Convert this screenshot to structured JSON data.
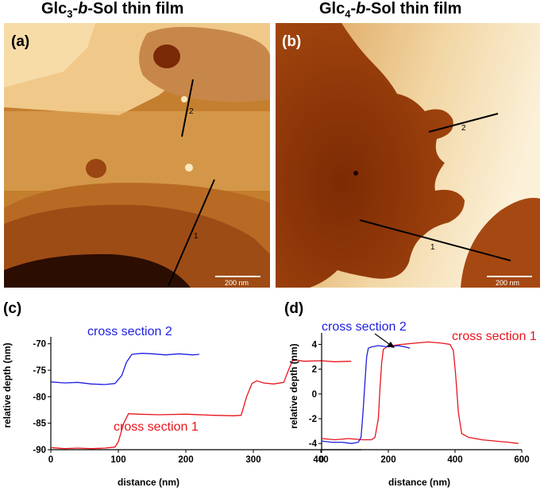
{
  "titles": {
    "a": {
      "pre": "Glc",
      "sub": "3",
      "post": "-",
      "italic": "b",
      "post2": "-Sol thin film"
    },
    "b": {
      "pre": "Glc",
      "sub": "4",
      "post": "-",
      "italic": "b",
      "post2": "-Sol thin film"
    }
  },
  "panels": {
    "a": {
      "letter": "(a)",
      "scalebar": "200 nm",
      "line_labels": [
        "1",
        "2"
      ]
    },
    "b": {
      "letter": "(b)",
      "scalebar": "200 nm",
      "line_labels": [
        "1",
        "2"
      ]
    },
    "c": {
      "letter": "(c)"
    },
    "d": {
      "letter": "(d)"
    }
  },
  "colors": {
    "series1": "#e8141b",
    "series2": "#1e1ee0"
  },
  "chart_data": [
    {
      "type": "line",
      "panel": "c",
      "xlabel": "distance (nm)",
      "ylabel": "relative depth (nm)",
      "xlim": [
        0,
        460
      ],
      "ylim": [
        -90,
        -69
      ],
      "xticks": [
        0,
        100,
        200,
        300,
        400
      ],
      "yticks": [
        -70,
        -75,
        -80,
        -85,
        -90
      ],
      "series": [
        {
          "name": "cross section 1",
          "color": "#e8141b",
          "x": [
            0,
            20,
            40,
            60,
            80,
            95,
            100,
            108,
            115,
            130,
            160,
            200,
            240,
            270,
            282,
            290,
            298,
            305,
            315,
            330,
            345,
            352,
            358,
            365,
            375,
            400,
            420,
            445
          ],
          "y": [
            -89.6,
            -89.8,
            -89.7,
            -89.8,
            -89.7,
            -89.5,
            -88.5,
            -85,
            -83.2,
            -83.3,
            -83.4,
            -83.3,
            -83.5,
            -83.6,
            -83.5,
            -80,
            -77.5,
            -77,
            -77.4,
            -77.6,
            -77.3,
            -75,
            -73.2,
            -73.1,
            -73.3,
            -73.2,
            -73.4,
            -73.3
          ]
        },
        {
          "name": "cross section 2",
          "color": "#1e1ee0",
          "x": [
            0,
            20,
            40,
            60,
            80,
            95,
            105,
            112,
            120,
            135,
            150,
            170,
            190,
            210,
            220
          ],
          "y": [
            -77.2,
            -77.4,
            -77.3,
            -77.6,
            -77.7,
            -77.5,
            -76,
            -73.5,
            -72,
            -71.8,
            -71.9,
            -72.1,
            -71.9,
            -72.1,
            -72.0
          ]
        }
      ]
    },
    {
      "type": "line",
      "panel": "d",
      "xlabel": "distance (nm)",
      "ylabel": "relative depth (nm)",
      "xlim": [
        0,
        600
      ],
      "ylim": [
        -4.5,
        4.8
      ],
      "xticks": [
        0,
        200,
        400,
        600
      ],
      "yticks": [
        4,
        2,
        0,
        -2,
        -4
      ],
      "series": [
        {
          "name": "cross section 1",
          "color": "#e8141b",
          "x": [
            0,
            40,
            80,
            120,
            150,
            160,
            170,
            175,
            180,
            185,
            195,
            210,
            240,
            280,
            320,
            360,
            385,
            395,
            402,
            410,
            420,
            440,
            480,
            520,
            560,
            590
          ],
          "y": [
            -3.6,
            -3.7,
            -3.6,
            -3.7,
            -3.7,
            -3.5,
            -2,
            0.5,
            2.5,
            3.6,
            3.8,
            3.9,
            4.0,
            4.1,
            4.2,
            4.1,
            4.0,
            3.5,
            1.5,
            -1.5,
            -3.2,
            -3.5,
            -3.7,
            -3.8,
            -3.9,
            -4.0
          ]
        },
        {
          "name": "cross section 2",
          "color": "#1e1ee0",
          "x": [
            0,
            30,
            60,
            90,
            110,
            118,
            124,
            130,
            135,
            140,
            150,
            170,
            200,
            230,
            250,
            265
          ],
          "y": [
            -3.8,
            -3.9,
            -3.9,
            -4.0,
            -3.9,
            -3.5,
            -1.5,
            1.0,
            3.0,
            3.7,
            3.8,
            3.9,
            3.8,
            3.9,
            3.8,
            3.7
          ]
        }
      ]
    }
  ]
}
